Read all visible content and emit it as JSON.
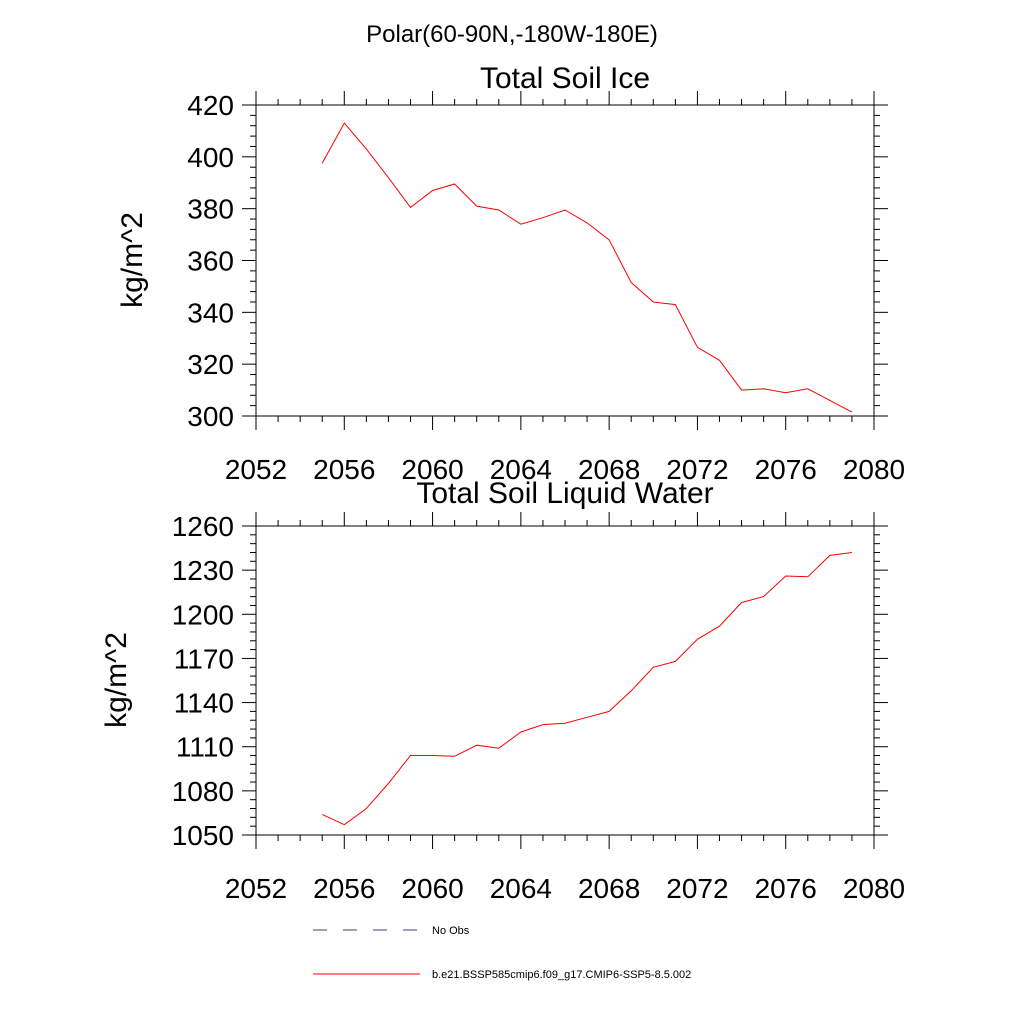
{
  "figure": {
    "suptitle": "Polar(60-90N,-180W-180E)"
  },
  "legend": {
    "items": [
      {
        "label": "No Obs",
        "color": "#3b3f7a",
        "style": "dashed"
      },
      {
        "label": "b.e21.BSSP585cmip6.f09_g17.CMIP6-SSP5-8.5.002",
        "color": "#ff0000",
        "style": "solid"
      }
    ]
  },
  "chart_data": [
    {
      "type": "line",
      "title": "Total Soil Ice",
      "xlabel": "",
      "ylabel": "kg/m^2",
      "xlim": [
        2052,
        2080
      ],
      "ylim": [
        300,
        420
      ],
      "xticks": [
        2052,
        2056,
        2060,
        2064,
        2068,
        2072,
        2076,
        2080
      ],
      "yticks": [
        300,
        320,
        340,
        360,
        380,
        400,
        420
      ],
      "grid": false,
      "series": [
        {
          "name": "b.e21.BSSP585cmip6.f09_g17.CMIP6-SSP5-8.5.002",
          "color": "#ff0000",
          "x": [
            2055,
            2056,
            2057,
            2058,
            2059,
            2060,
            2061,
            2062,
            2063,
            2064,
            2065,
            2066,
            2067,
            2068,
            2069,
            2070,
            2071,
            2072,
            2073,
            2074,
            2075,
            2076,
            2077,
            2078,
            2079
          ],
          "y": [
            397.5,
            413,
            403,
            392,
            380.5,
            387,
            389.5,
            381,
            379.5,
            374,
            376.5,
            379.5,
            374.5,
            368,
            351.5,
            344,
            343,
            326.5,
            321.5,
            310,
            310.5,
            309,
            310.5,
            306,
            301.5
          ]
        }
      ]
    },
    {
      "type": "line",
      "title": "Total Soil Liquid Water",
      "xlabel": "",
      "ylabel": "kg/m^2",
      "xlim": [
        2052,
        2080
      ],
      "ylim": [
        1050,
        1260
      ],
      "xticks": [
        2052,
        2056,
        2060,
        2064,
        2068,
        2072,
        2076,
        2080
      ],
      "yticks": [
        1050,
        1080,
        1110,
        1140,
        1170,
        1200,
        1230,
        1260
      ],
      "grid": false,
      "series": [
        {
          "name": "b.e21.BSSP585cmip6.f09_g17.CMIP6-SSP5-8.5.002",
          "color": "#ff0000",
          "x": [
            2055,
            2056,
            2057,
            2058,
            2059,
            2060,
            2061,
            2062,
            2063,
            2064,
            2065,
            2066,
            2067,
            2068,
            2069,
            2070,
            2071,
            2072,
            2073,
            2074,
            2075,
            2076,
            2077,
            2078,
            2079
          ],
          "y": [
            1064,
            1057,
            1068,
            1085,
            1104,
            1104,
            1103.5,
            1111,
            1109,
            1120,
            1125,
            1126,
            1130,
            1134,
            1148,
            1164,
            1168,
            1183,
            1192,
            1208,
            1212,
            1226,
            1225.5,
            1240,
            1242
          ]
        }
      ]
    }
  ]
}
